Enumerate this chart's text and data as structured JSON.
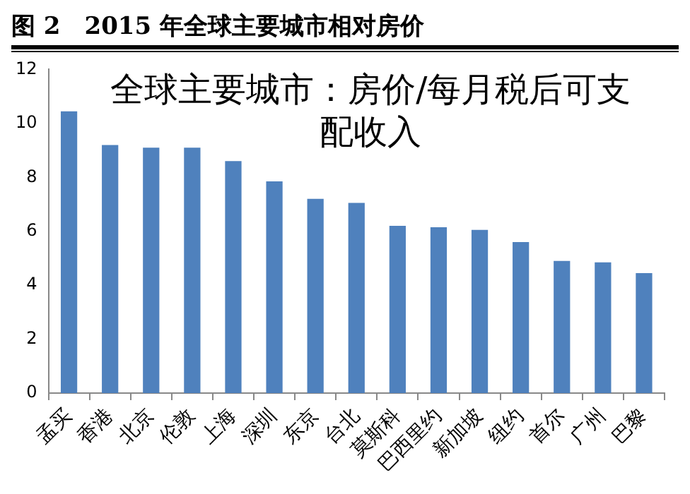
{
  "chart_data": {
    "type": "bar",
    "title": "图 2　2015 年全球主要城市相对房价",
    "subtitle": "全球主要城市：房价/每月税后可支配收入",
    "categories": [
      "孟买",
      "香港",
      "北京",
      "伦敦",
      "上海",
      "深圳",
      "东京",
      "台北",
      "莫斯科",
      "巴西里约",
      "新加坡",
      "纽约",
      "首尔",
      "广州",
      "巴黎"
    ],
    "values": [
      10.45,
      9.2,
      9.1,
      9.1,
      8.6,
      7.85,
      7.2,
      7.05,
      6.2,
      6.15,
      6.05,
      5.6,
      4.9,
      4.85,
      4.45
    ],
    "color": "#4f81bd",
    "ylim": [
      0,
      12
    ],
    "yticks": [
      0,
      2,
      4,
      6,
      8,
      10,
      12
    ],
    "grid": false,
    "legend": false
  }
}
